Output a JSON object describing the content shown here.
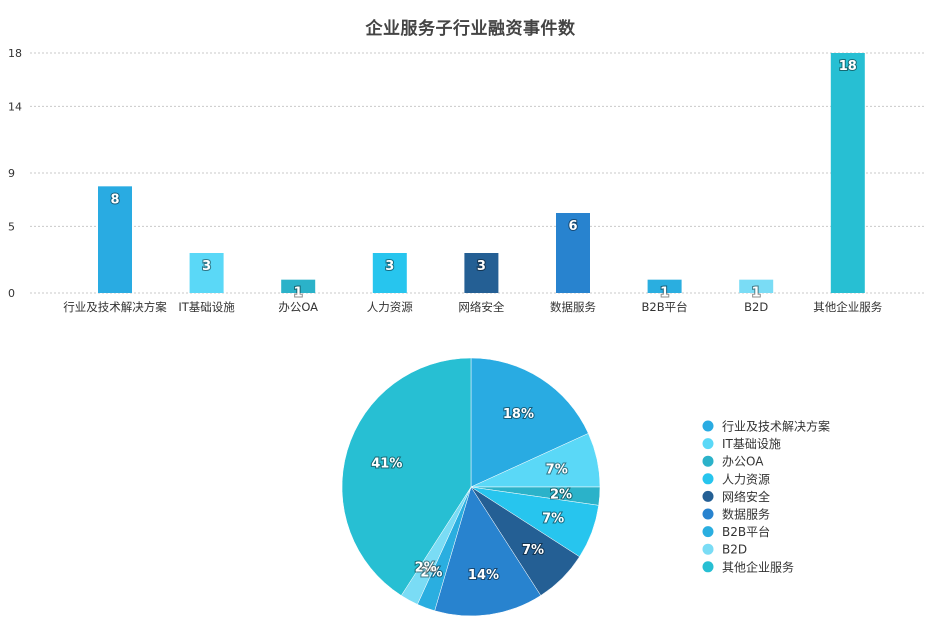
{
  "chart_data": [
    {
      "type": "bar",
      "title": "企业服务子行业融资事件数",
      "categories": [
        "行业及技术解决方案",
        "IT基础设施",
        "办公OA",
        "人力资源",
        "网络安全",
        "数据服务",
        "B2B平台",
        "B2D",
        "其他企业服务"
      ],
      "values": [
        8,
        3,
        1,
        3,
        3,
        6,
        1,
        1,
        18
      ],
      "data_labels": [
        "8",
        "3",
        "1",
        "3",
        "3",
        "6",
        "1",
        "1",
        "18"
      ],
      "y_ticks": [
        0,
        5,
        9,
        14,
        18
      ],
      "ylim": [
        0,
        18
      ],
      "grid": true,
      "xlabel": "",
      "ylabel": ""
    },
    {
      "type": "pie",
      "categories": [
        "行业及技术解决方案",
        "IT基础设施",
        "办公OA",
        "人力资源",
        "网络安全",
        "数据服务",
        "B2B平台",
        "B2D",
        "其他企业服务"
      ],
      "values": [
        8,
        3,
        1,
        3,
        3,
        6,
        1,
        1,
        18
      ],
      "percent_labels": [
        "18%",
        "7%",
        "2%",
        "7%",
        "7%",
        "14%",
        "2%",
        "2%",
        "41%"
      ],
      "legend_position": "right"
    }
  ],
  "colors": [
    "#29abe2",
    "#5ad8f7",
    "#2bb2c9",
    "#27c5ee",
    "#245f94",
    "#2883cf",
    "#2aaee0",
    "#7adcf5",
    "#27bfd3"
  ]
}
